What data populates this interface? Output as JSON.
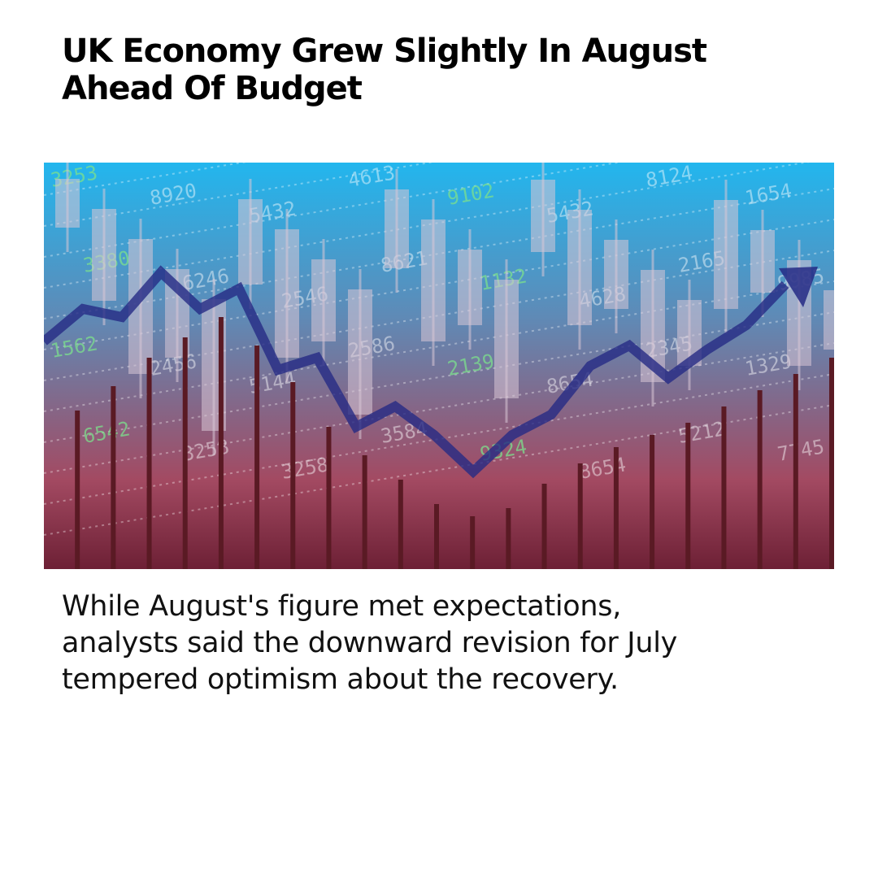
{
  "article": {
    "headline_line1": "UK Economy Grew Slightly In August",
    "headline_line2": "Ahead Of Budget",
    "body_line1": "While August's figure met expectations,",
    "body_line2": "analysts said the downward revision for July",
    "body_line3": "tempered optimism about the recovery."
  },
  "hero": {
    "bar_levels": [
      0.39,
      0.45,
      0.52,
      0.57,
      0.62,
      0.55,
      0.46,
      0.35,
      0.28,
      0.22,
      0.16,
      0.13,
      0.15,
      0.21,
      0.26,
      0.3,
      0.33,
      0.36,
      0.4,
      0.44,
      0.48,
      0.52
    ],
    "trend_levels": [
      0.56,
      0.64,
      0.62,
      0.73,
      0.64,
      0.69,
      0.49,
      0.52,
      0.35,
      0.4,
      0.33,
      0.24,
      0.33,
      0.38,
      0.5,
      0.55,
      0.47,
      0.54,
      0.6,
      0.7
    ],
    "ticker_numbers": [
      "3253",
      "8920",
      "5432",
      "4613",
      "9102",
      "5432",
      "8124",
      "1654",
      "3380",
      "6246",
      "2546",
      "8621",
      "1132",
      "4628",
      "2165",
      "9985",
      "1562",
      "2456",
      "5144",
      "2586",
      "2139",
      "8654",
      "2345",
      "1329",
      "6542",
      "3258",
      "3258",
      "3584",
      "9324",
      "8654",
      "5212",
      "7745"
    ],
    "colors": {
      "flag_red": "#e8202a",
      "flag_blue": "#23306e",
      "flag_white": "#ffffff",
      "sky_top": "#22b6ee",
      "sky_mid": "#5f8ab6",
      "sky_low": "#a34a62",
      "candle": "#d8c7d6",
      "trend_line": "#252a85"
    }
  }
}
